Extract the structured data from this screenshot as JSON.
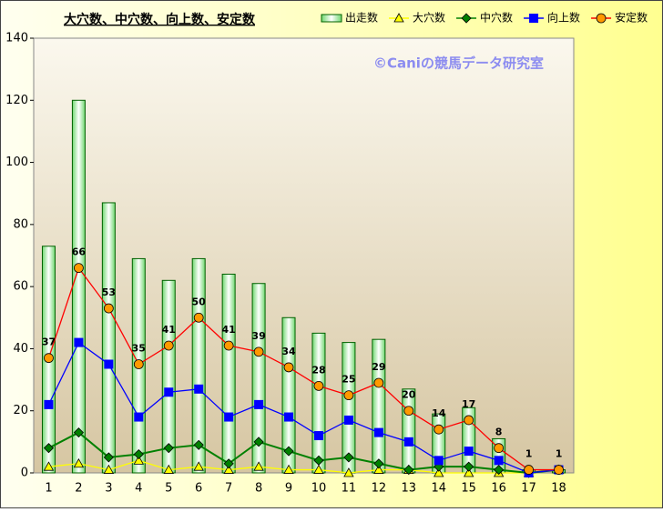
{
  "chart_data": {
    "type": "bar",
    "title": "大穴数、中穴数、向上数、安定数",
    "watermark": "©Caniの競馬データ研究室",
    "categories": [
      "1",
      "2",
      "3",
      "4",
      "5",
      "6",
      "7",
      "8",
      "9",
      "10",
      "11",
      "12",
      "13",
      "14",
      "15",
      "16",
      "17",
      "18"
    ],
    "ylim": [
      0,
      140
    ],
    "yticks": [
      0,
      20,
      40,
      60,
      80,
      100,
      120,
      140
    ],
    "legend": "top-right",
    "series": [
      {
        "name": "出走数",
        "type": "bar",
        "color": "#80e080",
        "values": [
          73,
          120,
          87,
          69,
          62,
          69,
          64,
          61,
          50,
          45,
          42,
          43,
          27,
          19,
          21,
          11,
          1,
          1
        ]
      },
      {
        "name": "大穴数",
        "type": "line",
        "marker": "triangle",
        "color": "#ffff00",
        "values": [
          2,
          3,
          1,
          4,
          1,
          2,
          1,
          2,
          1,
          1,
          0,
          1,
          1,
          0,
          0,
          0,
          0,
          1
        ]
      },
      {
        "name": "中穴数",
        "type": "line",
        "marker": "diamond",
        "color": "#008000",
        "values": [
          8,
          13,
          5,
          6,
          8,
          9,
          3,
          10,
          7,
          4,
          5,
          3,
          1,
          2,
          2,
          1,
          0,
          1
        ]
      },
      {
        "name": "向上数",
        "type": "line",
        "marker": "square",
        "color": "#0000ff",
        "values": [
          22,
          42,
          35,
          18,
          26,
          27,
          18,
          22,
          18,
          12,
          17,
          13,
          10,
          4,
          7,
          4,
          0,
          1
        ]
      },
      {
        "name": "安定数",
        "type": "line",
        "marker": "circle",
        "color": "#ff0000",
        "marker_color": "#ff9900",
        "data_labels": true,
        "values": [
          37,
          66,
          53,
          35,
          41,
          50,
          41,
          39,
          34,
          28,
          25,
          29,
          20,
          14,
          17,
          8,
          1,
          1
        ]
      }
    ]
  }
}
